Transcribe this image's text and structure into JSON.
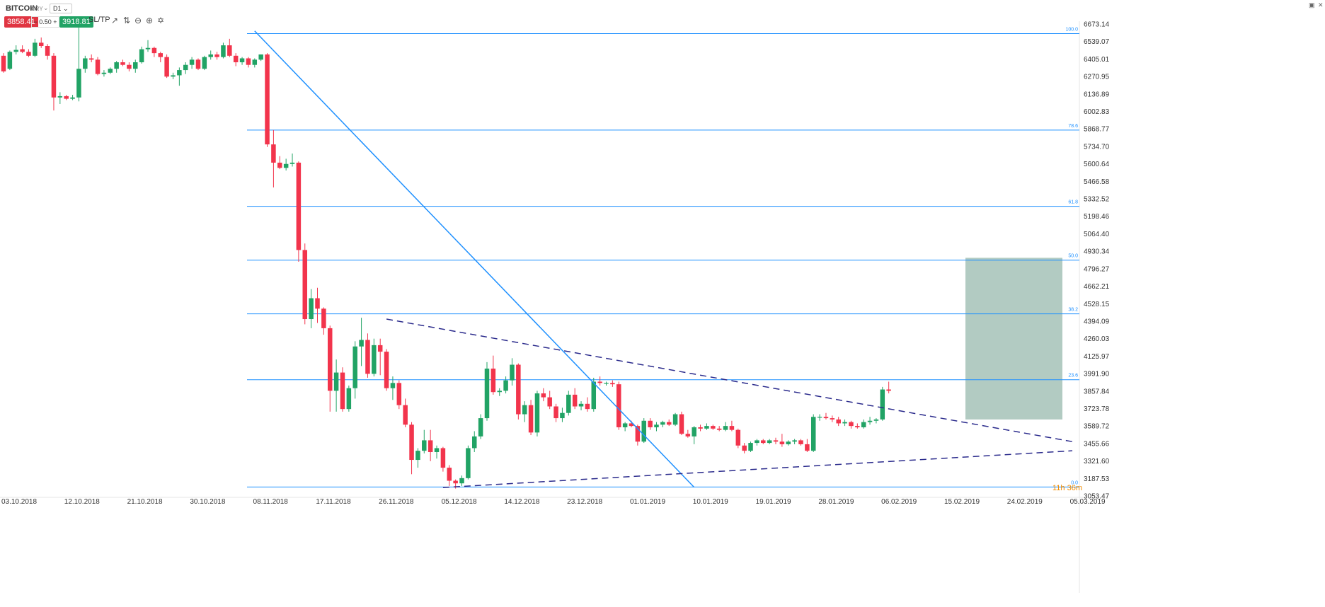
{
  "toolbar": {
    "symbol": "BITCOIN",
    "symbol_sub": "CRY",
    "timeframe": "D1",
    "sell_price": "3858.41",
    "lot": "0.50",
    "buy_price": "3918.81",
    "sltp_label": "SL/TP",
    "icons": [
      "line-chart-icon",
      "candles-icon",
      "zoom-out-icon",
      "zoom-in-icon",
      "crosshair-icon"
    ]
  },
  "window": {
    "controls": [
      "minimize-icon",
      "close-icon"
    ]
  },
  "countdown": "11h 36m",
  "colors": {
    "up": "#21a365",
    "down": "#f2344c",
    "fib": "#1e90ff",
    "trend": "#2b2b8c",
    "target_zone": "#7fa99a"
  },
  "chart_data": {
    "type": "candlestick",
    "instrument": "BITCOIN",
    "timeframe": "D1",
    "y_ticks": [
      "6673.14",
      "6539.07",
      "6405.01",
      "6270.95",
      "6136.89",
      "6002.83",
      "5868.77",
      "5734.70",
      "5600.64",
      "5466.58",
      "5332.52",
      "5198.46",
      "5064.40",
      "4930.34",
      "4796.27",
      "4662.21",
      "4528.15",
      "4394.09",
      "4260.03",
      "4125.97",
      "3991.90",
      "3857.84",
      "3723.78",
      "3589.72",
      "3455.66",
      "3321.60",
      "3187.53",
      "3053.47"
    ],
    "x_ticks": [
      "03.10.2018",
      "12.10.2018",
      "21.10.2018",
      "30.10.2018",
      "08.11.2018",
      "17.11.2018",
      "26.11.2018",
      "05.12.2018",
      "14.12.2018",
      "23.12.2018",
      "01.01.2019",
      "10.01.2019",
      "19.01.2019",
      "28.01.2019",
      "06.02.2019",
      "15.02.2019",
      "24.02.2019",
      "05.03.2019"
    ],
    "fibonacci": [
      {
        "label": "100.0",
        "price": 6600
      },
      {
        "label": "78.6",
        "price": 5860
      },
      {
        "label": "61.8",
        "price": 5275
      },
      {
        "label": "50.0",
        "price": 4862
      },
      {
        "label": "38.2",
        "price": 4450
      },
      {
        "label": "23.6",
        "price": 3945
      },
      {
        "label": "0.0",
        "price": 3122
      }
    ],
    "candles": [
      {
        "o": 6430,
        "h": 6450,
        "l": 6300,
        "c": 6310
      },
      {
        "o": 6330,
        "h": 6470,
        "l": 6320,
        "c": 6460
      },
      {
        "o": 6460,
        "h": 6510,
        "l": 6440,
        "c": 6475
      },
      {
        "o": 6480,
        "h": 6510,
        "l": 6450,
        "c": 6460
      },
      {
        "o": 6460,
        "h": 6480,
        "l": 6420,
        "c": 6430
      },
      {
        "o": 6430,
        "h": 6560,
        "l": 6420,
        "c": 6530
      },
      {
        "o": 6530,
        "h": 6570,
        "l": 6490,
        "c": 6505
      },
      {
        "o": 6505,
        "h": 6520,
        "l": 6400,
        "c": 6430
      },
      {
        "o": 6430,
        "h": 6450,
        "l": 6010,
        "c": 6110
      },
      {
        "o": 6110,
        "h": 6150,
        "l": 6060,
        "c": 6120
      },
      {
        "o": 6120,
        "h": 6130,
        "l": 6090,
        "c": 6100
      },
      {
        "o": 6100,
        "h": 6130,
        "l": 6090,
        "c": 6110
      },
      {
        "o": 6110,
        "h": 6690,
        "l": 6080,
        "c": 6330
      },
      {
        "o": 6330,
        "h": 6430,
        "l": 6300,
        "c": 6410
      },
      {
        "o": 6410,
        "h": 6440,
        "l": 6380,
        "c": 6400
      },
      {
        "o": 6400,
        "h": 6420,
        "l": 6280,
        "c": 6290
      },
      {
        "o": 6290,
        "h": 6320,
        "l": 6270,
        "c": 6300
      },
      {
        "o": 6300,
        "h": 6340,
        "l": 6290,
        "c": 6330
      },
      {
        "o": 6330,
        "h": 6390,
        "l": 6300,
        "c": 6380
      },
      {
        "o": 6380,
        "h": 6400,
        "l": 6350,
        "c": 6360
      },
      {
        "o": 6360,
        "h": 6380,
        "l": 6310,
        "c": 6330
      },
      {
        "o": 6330,
        "h": 6400,
        "l": 6300,
        "c": 6380
      },
      {
        "o": 6380,
        "h": 6500,
        "l": 6370,
        "c": 6480
      },
      {
        "o": 6480,
        "h": 6550,
        "l": 6460,
        "c": 6490
      },
      {
        "o": 6490,
        "h": 6500,
        "l": 6420,
        "c": 6450
      },
      {
        "o": 6450,
        "h": 6460,
        "l": 6380,
        "c": 6420
      },
      {
        "o": 6420,
        "h": 6440,
        "l": 6260,
        "c": 6270
      },
      {
        "o": 6270,
        "h": 6300,
        "l": 6250,
        "c": 6280
      },
      {
        "o": 6280,
        "h": 6340,
        "l": 6200,
        "c": 6320
      },
      {
        "o": 6320,
        "h": 6380,
        "l": 6290,
        "c": 6360
      },
      {
        "o": 6360,
        "h": 6420,
        "l": 6330,
        "c": 6400
      },
      {
        "o": 6400,
        "h": 6410,
        "l": 6320,
        "c": 6330
      },
      {
        "o": 6330,
        "h": 6430,
        "l": 6320,
        "c": 6420
      },
      {
        "o": 6420,
        "h": 6470,
        "l": 6400,
        "c": 6440
      },
      {
        "o": 6440,
        "h": 6460,
        "l": 6400,
        "c": 6420
      },
      {
        "o": 6420,
        "h": 6530,
        "l": 6410,
        "c": 6510
      },
      {
        "o": 6510,
        "h": 6560,
        "l": 6420,
        "c": 6430
      },
      {
        "o": 6430,
        "h": 6450,
        "l": 6350,
        "c": 6380
      },
      {
        "o": 6380,
        "h": 6420,
        "l": 6360,
        "c": 6410
      },
      {
        "o": 6410,
        "h": 6420,
        "l": 6340,
        "c": 6360
      },
      {
        "o": 6360,
        "h": 6410,
        "l": 6340,
        "c": 6400
      },
      {
        "o": 6400,
        "h": 6440,
        "l": 6390,
        "c": 6440
      },
      {
        "o": 6440,
        "h": 6450,
        "l": 5730,
        "c": 5750
      },
      {
        "o": 5750,
        "h": 5860,
        "l": 5420,
        "c": 5610
      },
      {
        "o": 5610,
        "h": 5660,
        "l": 5560,
        "c": 5570
      },
      {
        "o": 5570,
        "h": 5640,
        "l": 5550,
        "c": 5600
      },
      {
        "o": 5600,
        "h": 5680,
        "l": 5580,
        "c": 5610
      },
      {
        "o": 5610,
        "h": 5620,
        "l": 4850,
        "c": 4940
      },
      {
        "o": 4940,
        "h": 4990,
        "l": 4370,
        "c": 4410
      },
      {
        "o": 4410,
        "h": 4640,
        "l": 4340,
        "c": 4570
      },
      {
        "o": 4570,
        "h": 4650,
        "l": 4380,
        "c": 4490
      },
      {
        "o": 4490,
        "h": 4500,
        "l": 4290,
        "c": 4340
      },
      {
        "o": 4340,
        "h": 4360,
        "l": 3700,
        "c": 3860
      },
      {
        "o": 3860,
        "h": 4100,
        "l": 3700,
        "c": 4000
      },
      {
        "o": 4000,
        "h": 4040,
        "l": 3700,
        "c": 3720
      },
      {
        "o": 3720,
        "h": 3900,
        "l": 3700,
        "c": 3880
      },
      {
        "o": 3880,
        "h": 4240,
        "l": 3800,
        "c": 4200
      },
      {
        "o": 4200,
        "h": 4420,
        "l": 4050,
        "c": 4250
      },
      {
        "o": 4250,
        "h": 4300,
        "l": 3960,
        "c": 3990
      },
      {
        "o": 3990,
        "h": 4260,
        "l": 3970,
        "c": 4210
      },
      {
        "o": 4210,
        "h": 4260,
        "l": 3980,
        "c": 4160
      },
      {
        "o": 4160,
        "h": 4180,
        "l": 3860,
        "c": 3880
      },
      {
        "o": 3880,
        "h": 3970,
        "l": 3790,
        "c": 3920
      },
      {
        "o": 3920,
        "h": 3940,
        "l": 3720,
        "c": 3750
      },
      {
        "o": 3750,
        "h": 3800,
        "l": 3580,
        "c": 3600
      },
      {
        "o": 3600,
        "h": 3620,
        "l": 3220,
        "c": 3330
      },
      {
        "o": 3330,
        "h": 3420,
        "l": 3270,
        "c": 3400
      },
      {
        "o": 3400,
        "h": 3560,
        "l": 3380,
        "c": 3480
      },
      {
        "o": 3480,
        "h": 3560,
        "l": 3320,
        "c": 3390
      },
      {
        "o": 3390,
        "h": 3440,
        "l": 3340,
        "c": 3420
      },
      {
        "o": 3420,
        "h": 3430,
        "l": 3240,
        "c": 3270
      },
      {
        "o": 3270,
        "h": 3290,
        "l": 3130,
        "c": 3170
      },
      {
        "o": 3170,
        "h": 3180,
        "l": 3110,
        "c": 3150
      },
      {
        "o": 3150,
        "h": 3210,
        "l": 3130,
        "c": 3190
      },
      {
        "o": 3190,
        "h": 3440,
        "l": 3180,
        "c": 3420
      },
      {
        "o": 3420,
        "h": 3550,
        "l": 3390,
        "c": 3510
      },
      {
        "o": 3510,
        "h": 3680,
        "l": 3490,
        "c": 3650
      },
      {
        "o": 3650,
        "h": 4080,
        "l": 3630,
        "c": 4030
      },
      {
        "o": 4030,
        "h": 4130,
        "l": 3830,
        "c": 3850
      },
      {
        "o": 3850,
        "h": 3880,
        "l": 3820,
        "c": 3860
      },
      {
        "o": 3860,
        "h": 3970,
        "l": 3840,
        "c": 3940
      },
      {
        "o": 3940,
        "h": 4110,
        "l": 3900,
        "c": 4060
      },
      {
        "o": 4060,
        "h": 4070,
        "l": 3640,
        "c": 3680
      },
      {
        "o": 3680,
        "h": 3780,
        "l": 3620,
        "c": 3750
      },
      {
        "o": 3750,
        "h": 3790,
        "l": 3520,
        "c": 3540
      },
      {
        "o": 3540,
        "h": 3860,
        "l": 3510,
        "c": 3840
      },
      {
        "o": 3840,
        "h": 3880,
        "l": 3780,
        "c": 3810
      },
      {
        "o": 3810,
        "h": 3860,
        "l": 3720,
        "c": 3740
      },
      {
        "o": 3740,
        "h": 3760,
        "l": 3620,
        "c": 3650
      },
      {
        "o": 3650,
        "h": 3730,
        "l": 3620,
        "c": 3690
      },
      {
        "o": 3690,
        "h": 3860,
        "l": 3670,
        "c": 3830
      },
      {
        "o": 3830,
        "h": 3880,
        "l": 3720,
        "c": 3740
      },
      {
        "o": 3740,
        "h": 3780,
        "l": 3710,
        "c": 3760
      },
      {
        "o": 3760,
        "h": 3810,
        "l": 3700,
        "c": 3720
      },
      {
        "o": 3720,
        "h": 3960,
        "l": 3700,
        "c": 3930
      },
      {
        "o": 3930,
        "h": 3970,
        "l": 3900,
        "c": 3920
      },
      {
        "o": 3920,
        "h": 3930,
        "l": 3900,
        "c": 3920
      },
      {
        "o": 3920,
        "h": 3940,
        "l": 3890,
        "c": 3910
      },
      {
        "o": 3910,
        "h": 3930,
        "l": 3560,
        "c": 3580
      },
      {
        "o": 3580,
        "h": 3620,
        "l": 3550,
        "c": 3610
      },
      {
        "o": 3610,
        "h": 3630,
        "l": 3580,
        "c": 3590
      },
      {
        "o": 3590,
        "h": 3600,
        "l": 3440,
        "c": 3470
      },
      {
        "o": 3470,
        "h": 3650,
        "l": 3460,
        "c": 3630
      },
      {
        "o": 3630,
        "h": 3650,
        "l": 3560,
        "c": 3580
      },
      {
        "o": 3580,
        "h": 3620,
        "l": 3550,
        "c": 3600
      },
      {
        "o": 3600,
        "h": 3630,
        "l": 3580,
        "c": 3620
      },
      {
        "o": 3620,
        "h": 3640,
        "l": 3590,
        "c": 3600
      },
      {
        "o": 3600,
        "h": 3690,
        "l": 3590,
        "c": 3680
      },
      {
        "o": 3680,
        "h": 3700,
        "l": 3520,
        "c": 3530
      },
      {
        "o": 3530,
        "h": 3560,
        "l": 3500,
        "c": 3510
      },
      {
        "o": 3510,
        "h": 3590,
        "l": 3450,
        "c": 3580
      },
      {
        "o": 3580,
        "h": 3600,
        "l": 3550,
        "c": 3570
      },
      {
        "o": 3570,
        "h": 3610,
        "l": 3560,
        "c": 3590
      },
      {
        "o": 3590,
        "h": 3600,
        "l": 3560,
        "c": 3570
      },
      {
        "o": 3570,
        "h": 3590,
        "l": 3550,
        "c": 3560
      },
      {
        "o": 3560,
        "h": 3620,
        "l": 3550,
        "c": 3590
      },
      {
        "o": 3590,
        "h": 3630,
        "l": 3550,
        "c": 3560
      },
      {
        "o": 3560,
        "h": 3570,
        "l": 3420,
        "c": 3440
      },
      {
        "o": 3440,
        "h": 3460,
        "l": 3380,
        "c": 3400
      },
      {
        "o": 3400,
        "h": 3470,
        "l": 3390,
        "c": 3460
      },
      {
        "o": 3460,
        "h": 3490,
        "l": 3440,
        "c": 3480
      },
      {
        "o": 3480,
        "h": 3490,
        "l": 3450,
        "c": 3460
      },
      {
        "o": 3460,
        "h": 3490,
        "l": 3450,
        "c": 3480
      },
      {
        "o": 3480,
        "h": 3500,
        "l": 3450,
        "c": 3470
      },
      {
        "o": 3470,
        "h": 3530,
        "l": 3430,
        "c": 3450
      },
      {
        "o": 3450,
        "h": 3480,
        "l": 3440,
        "c": 3470
      },
      {
        "o": 3470,
        "h": 3490,
        "l": 3450,
        "c": 3480
      },
      {
        "o": 3480,
        "h": 3490,
        "l": 3440,
        "c": 3450
      },
      {
        "o": 3450,
        "h": 3490,
        "l": 3390,
        "c": 3400
      },
      {
        "o": 3400,
        "h": 3680,
        "l": 3390,
        "c": 3660
      },
      {
        "o": 3660,
        "h": 3680,
        "l": 3630,
        "c": 3660
      },
      {
        "o": 3660,
        "h": 3690,
        "l": 3640,
        "c": 3650
      },
      {
        "o": 3650,
        "h": 3670,
        "l": 3620,
        "c": 3640
      },
      {
        "o": 3640,
        "h": 3660,
        "l": 3590,
        "c": 3610
      },
      {
        "o": 3610,
        "h": 3640,
        "l": 3590,
        "c": 3620
      },
      {
        "o": 3620,
        "h": 3630,
        "l": 3570,
        "c": 3590
      },
      {
        "o": 3590,
        "h": 3610,
        "l": 3570,
        "c": 3580
      },
      {
        "o": 3580,
        "h": 3640,
        "l": 3570,
        "c": 3620
      },
      {
        "o": 3620,
        "h": 3660,
        "l": 3600,
        "c": 3630
      },
      {
        "o": 3630,
        "h": 3650,
        "l": 3610,
        "c": 3640
      },
      {
        "o": 3640,
        "h": 3890,
        "l": 3630,
        "c": 3870
      },
      {
        "o": 3870,
        "h": 3930,
        "l": 3840,
        "c": 3860
      }
    ],
    "target_zone": {
      "price_top": 4880,
      "price_bottom": 3640
    },
    "trendlines": [
      {
        "style": "solid",
        "from": {
          "bar": 40,
          "price": 6620
        },
        "to": {
          "bar": 110,
          "price": 3120
        }
      },
      {
        "style": "dashed",
        "from": {
          "bar": 61,
          "price": 4410
        },
        "to": {
          "bar": "end",
          "price": 3470
        }
      },
      {
        "style": "dashed",
        "from": {
          "bar": 70,
          "price": 3118
        },
        "to": {
          "bar": "end",
          "price": 3400
        }
      }
    ]
  }
}
